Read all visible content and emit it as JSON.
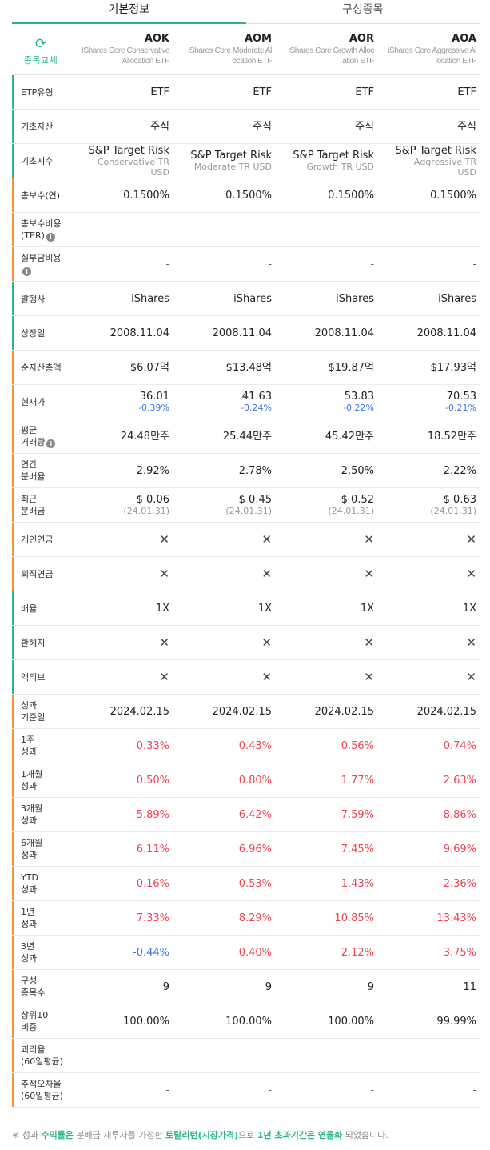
{
  "tabs": [
    "기본정보",
    "구성종목"
  ],
  "swap_label": "종목교체",
  "funds": [
    {
      "ticker": "AOK",
      "name": [
        "iShares Core Conservative",
        "Allocation ETF"
      ]
    },
    {
      "ticker": "AOM",
      "name": [
        "iShares Core Moderate Al",
        "ocation ETF"
      ]
    },
    {
      "ticker": "AOR",
      "name": [
        "iShares Core Growth Alloc",
        "ation ETF"
      ]
    },
    {
      "ticker": "AOA",
      "name": [
        "iShares Core Aggressive Al",
        "location ETF"
      ]
    }
  ],
  "rows": [
    {
      "label": [
        "ETP유형"
      ],
      "group": "g",
      "values": [
        [
          "ETF"
        ],
        [
          "ETF"
        ],
        [
          "ETF"
        ],
        [
          "ETF"
        ]
      ]
    },
    {
      "label": [
        "기초자산"
      ],
      "group": "g",
      "values": [
        [
          "주식"
        ],
        [
          "주식"
        ],
        [
          "주식"
        ],
        [
          "주식"
        ]
      ]
    },
    {
      "label": [
        "기초지수"
      ],
      "group": "g",
      "values": [
        [
          "S&P Target Risk",
          "Conservative TR",
          "USD"
        ],
        [
          "S&P Target Risk",
          "Moderate TR USD"
        ],
        [
          "S&P Target Risk",
          "Growth TR USD"
        ],
        [
          "S&P Target Risk",
          "Aggressive TR",
          "USD"
        ]
      ]
    },
    {
      "label": [
        "총보수(연)"
      ],
      "group": "o",
      "values": [
        [
          "0.1500%"
        ],
        [
          "0.1500%"
        ],
        [
          "0.1500%"
        ],
        [
          "0.1500%"
        ]
      ]
    },
    {
      "label": [
        "총보수비용",
        "(TER)"
      ],
      "info": true,
      "group": "o",
      "values": [
        [
          "-"
        ],
        [
          "-"
        ],
        [
          "-"
        ],
        [
          "-"
        ]
      ]
    },
    {
      "label": [
        "실부담비용",
        ""
      ],
      "info": true,
      "group": "o",
      "values": [
        [
          "-"
        ],
        [
          "-"
        ],
        [
          "-"
        ],
        [
          "-"
        ]
      ]
    },
    {
      "label": [
        "발행사"
      ],
      "group": "g",
      "values": [
        [
          "iShares"
        ],
        [
          "iShares"
        ],
        [
          "iShares"
        ],
        [
          "iShares"
        ]
      ]
    },
    {
      "label": [
        "상장일"
      ],
      "group": "g",
      "values": [
        [
          "2008.11.04"
        ],
        [
          "2008.11.04"
        ],
        [
          "2008.11.04"
        ],
        [
          "2008.11.04"
        ]
      ]
    },
    {
      "label": [
        "순자산총액"
      ],
      "group": "o",
      "values": [
        [
          "$6.07억"
        ],
        [
          "$13.48억"
        ],
        [
          "$19.87억"
        ],
        [
          "$17.93억"
        ]
      ]
    },
    {
      "label": [
        "현재가"
      ],
      "group": "o",
      "values": [
        [
          "36.01",
          "-0.39%"
        ],
        [
          "41.63",
          "-0.24%"
        ],
        [
          "53.83",
          "-0.22%"
        ],
        [
          "70.53",
          "-0.21%"
        ]
      ]
    },
    {
      "label": [
        "평균",
        "거래량"
      ],
      "info": true,
      "group": "o",
      "values": [
        [
          "24.48만주"
        ],
        [
          "25.44만주"
        ],
        [
          "45.42만주"
        ],
        [
          "18.52만주"
        ]
      ]
    },
    {
      "label": [
        "연간",
        "분배율"
      ],
      "group": "o",
      "values": [
        [
          "2.92%"
        ],
        [
          "2.78%"
        ],
        [
          "2.50%"
        ],
        [
          "2.22%"
        ]
      ]
    },
    {
      "label": [
        "최근",
        "분배금"
      ],
      "group": "o",
      "values": [
        [
          "$ 0.06",
          "(24.01.31)"
        ],
        [
          "$ 0.45",
          "(24.01.31)"
        ],
        [
          "$ 0.52",
          "(24.01.31)"
        ],
        [
          "$ 0.63",
          "(24.01.31)"
        ]
      ]
    },
    {
      "label": [
        "개인연금"
      ],
      "group": "o",
      "values": [
        [
          "✕"
        ],
        [
          "✕"
        ],
        [
          "✕"
        ],
        [
          "✕"
        ]
      ]
    },
    {
      "label": [
        "퇴직연금"
      ],
      "group": "o",
      "values": [
        [
          "✕"
        ],
        [
          "✕"
        ],
        [
          "✕"
        ],
        [
          "✕"
        ]
      ]
    },
    {
      "label": [
        "배율"
      ],
      "group": "g",
      "values": [
        [
          "1X"
        ],
        [
          "1X"
        ],
        [
          "1X"
        ],
        [
          "1X"
        ]
      ]
    },
    {
      "label": [
        "환헤지"
      ],
      "group": "g",
      "values": [
        [
          "✕"
        ],
        [
          "✕"
        ],
        [
          "✕"
        ],
        [
          "✕"
        ]
      ]
    },
    {
      "label": [
        "액티브"
      ],
      "group": "g",
      "values": [
        [
          "✕"
        ],
        [
          "✕"
        ],
        [
          "✕"
        ],
        [
          "✕"
        ]
      ]
    },
    {
      "label": [
        "성과",
        "기준일"
      ],
      "group": "o",
      "values": [
        [
          "2024.02.15"
        ],
        [
          "2024.02.15"
        ],
        [
          "2024.02.15"
        ],
        [
          "2024.02.15"
        ]
      ]
    },
    {
      "label": [
        "1주",
        "성과"
      ],
      "group": "o",
      "values": [
        [
          "0.33%"
        ],
        [
          "0.43%"
        ],
        [
          "0.56%"
        ],
        [
          "0.74%"
        ]
      ]
    },
    {
      "label": [
        "1개월",
        "성과"
      ],
      "group": "o",
      "values": [
        [
          "0.50%"
        ],
        [
          "0.80%"
        ],
        [
          "1.77%"
        ],
        [
          "2.63%"
        ]
      ]
    },
    {
      "label": [
        "3개월",
        "성과"
      ],
      "group": "o",
      "values": [
        [
          "5.89%"
        ],
        [
          "6.42%"
        ],
        [
          "7.59%"
        ],
        [
          "8.86%"
        ]
      ]
    },
    {
      "label": [
        "6개월",
        "성과"
      ],
      "group": "o",
      "values": [
        [
          "6.11%"
        ],
        [
          "6.96%"
        ],
        [
          "7.45%"
        ],
        [
          "9.69%"
        ]
      ]
    },
    {
      "label": [
        "YTD",
        "성과"
      ],
      "group": "o",
      "values": [
        [
          "0.16%"
        ],
        [
          "0.53%"
        ],
        [
          "1.43%"
        ],
        [
          "2.36%"
        ]
      ]
    },
    {
      "label": [
        "1년",
        "성과"
      ],
      "group": "o",
      "values": [
        [
          "7.33%"
        ],
        [
          "8.29%"
        ],
        [
          "10.85%"
        ],
        [
          "13.43%"
        ]
      ]
    },
    {
      "label": [
        "3년",
        "성과"
      ],
      "group": "o",
      "values": [
        [
          "-0.44%"
        ],
        [
          "0.40%"
        ],
        [
          "2.12%"
        ],
        [
          "3.75%"
        ]
      ]
    },
    {
      "label": [
        "구성",
        "종목수"
      ],
      "group": "o",
      "values": [
        [
          "9"
        ],
        [
          "9"
        ],
        [
          "9"
        ],
        [
          "11"
        ]
      ]
    },
    {
      "label": [
        "상위10",
        "비중"
      ],
      "group": "o",
      "values": [
        [
          "100.00%"
        ],
        [
          "100.00%"
        ],
        [
          "100.00%"
        ],
        [
          "99.99%"
        ]
      ]
    },
    {
      "label": [
        "괴리율",
        "(60일평균)"
      ],
      "group": "o",
      "values": [
        [
          "-"
        ],
        [
          "-"
        ],
        [
          "-"
        ],
        [
          "-"
        ]
      ]
    },
    {
      "label": [
        "추적오차율",
        "(60일평균)"
      ],
      "group": "o",
      "values": [
        [
          "-"
        ],
        [
          "-"
        ],
        [
          "-"
        ],
        [
          "-"
        ]
      ]
    }
  ],
  "footnote": {
    "prefix": "※ 성과 ",
    "k1": "수익률은",
    "t1": " 분배금 재투자를 가정한 ",
    "k2": "토탈리턴(시장가격)",
    "t2": "으로 ",
    "k3": "1년 초과기간은 연율화",
    "t3": " 되었습니다."
  },
  "colors": {
    "accent": "#2bb58d",
    "orange": "#f39138",
    "up": "#f04452",
    "down": "#3c78e0"
  }
}
